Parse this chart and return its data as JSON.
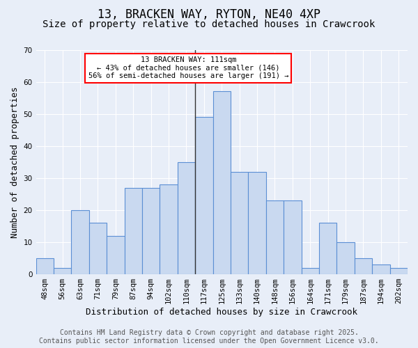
{
  "title": "13, BRACKEN WAY, RYTON, NE40 4XP",
  "subtitle": "Size of property relative to detached houses in Crawcrook",
  "xlabel": "Distribution of detached houses by size in Crawcrook",
  "ylabel": "Number of detached properties",
  "bar_values": [
    5,
    2,
    20,
    16,
    12,
    27,
    27,
    28,
    35,
    49,
    57,
    32,
    32,
    23,
    23,
    2,
    16,
    10,
    5,
    3,
    2
  ],
  "bar_labels": [
    "48sqm",
    "56sqm",
    "63sqm",
    "71sqm",
    "79sqm",
    "87sqm",
    "94sqm",
    "102sqm",
    "110sqm",
    "117sqm",
    "125sqm",
    "133sqm",
    "140sqm",
    "148sqm",
    "156sqm",
    "164sqm",
    "171sqm",
    "179sqm",
    "187sqm",
    "194sqm",
    "202sqm"
  ],
  "bar_color": "#c9d9f0",
  "bar_edge_color": "#5b8fd4",
  "background_color": "#e8eef8",
  "grid_color": "#ffffff",
  "vline_x": 8.5,
  "vline_color": "#333333",
  "annotation_text": "13 BRACKEN WAY: 111sqm\n← 43% of detached houses are smaller (146)\n56% of semi-detached houses are larger (191) →",
  "annotation_box_color": "white",
  "annotation_box_edge": "red",
  "ylim": [
    0,
    70
  ],
  "yticks": [
    0,
    10,
    20,
    30,
    40,
    50,
    60,
    70
  ],
  "footer_text": "Contains HM Land Registry data © Crown copyright and database right 2025.\nContains public sector information licensed under the Open Government Licence v3.0.",
  "title_fontsize": 12,
  "subtitle_fontsize": 10,
  "xlabel_fontsize": 9,
  "ylabel_fontsize": 9,
  "tick_fontsize": 7.5,
  "footer_fontsize": 7
}
